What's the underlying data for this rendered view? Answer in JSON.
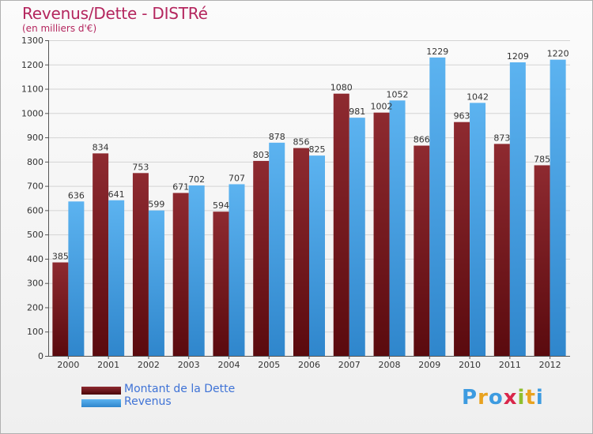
{
  "header": {
    "title": "Revenus/Dette - DISTRé",
    "subtitle": "(en milliers d'€)"
  },
  "colors": {
    "dette": "#7a1c22",
    "revenus": "#4aa3e6",
    "title": "#b4265e",
    "legend_text": "#3f73d6"
  },
  "legend": {
    "items": [
      {
        "label": "Montant de la Dette",
        "color": "#6b0f14"
      },
      {
        "label": "Revenus",
        "color": "#4aa3e6"
      }
    ]
  },
  "logo": {
    "text": "Proxiti",
    "letters": [
      {
        "char": "P",
        "color": "#3d9be0"
      },
      {
        "char": "r",
        "color": "#e8a21f"
      },
      {
        "char": "o",
        "color": "#3d9be0"
      },
      {
        "char": "x",
        "color": "#d9264a"
      },
      {
        "char": "i",
        "color": "#8fbf2e"
      },
      {
        "char": "t",
        "color": "#e8a21f"
      },
      {
        "char": "i",
        "color": "#3d9be0"
      }
    ]
  },
  "chart_data": {
    "type": "bar",
    "title": "Revenus/Dette - DISTRé",
    "subtitle": "(en milliers d'€)",
    "categories": [
      "2000",
      "2001",
      "2002",
      "2003",
      "2004",
      "2005",
      "2006",
      "2007",
      "2008",
      "2009",
      "2010",
      "2011",
      "2012"
    ],
    "series": [
      {
        "name": "Montant de la Dette",
        "values": [
          385,
          834,
          753,
          671,
          594,
          803,
          856,
          1080,
          1002,
          866,
          963,
          873,
          785
        ]
      },
      {
        "name": "Revenus",
        "values": [
          636,
          641,
          599,
          702,
          707,
          878,
          825,
          981,
          1052,
          1229,
          1042,
          1209,
          1220
        ]
      }
    ],
    "ylim": [
      0,
      1300
    ],
    "yticks": [
      0,
      100,
      200,
      300,
      400,
      500,
      600,
      700,
      800,
      900,
      1000,
      1100,
      1200,
      1300
    ],
    "grid": true,
    "legend_position": "bottom-left"
  }
}
